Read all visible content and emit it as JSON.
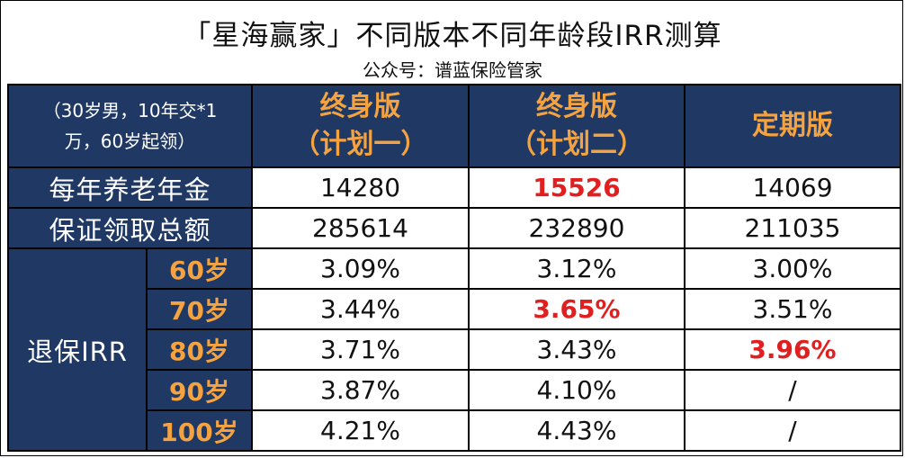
{
  "title": "「星海赢家」不同版本不同年龄段IRR测算",
  "subtitle": "公众号：谱蓝保险管家",
  "header": {
    "corner_line1": "（30岁男，10年交*1",
    "corner_line2": "万，60岁起领）",
    "col1_line1": "终身版",
    "col1_line2": "（计划一）",
    "col2_line1": "终身版",
    "col2_line2": "（计划二）",
    "col3": "定期版"
  },
  "rows": {
    "annual": {
      "label": "每年养老年金",
      "v1": "14280",
      "v2": "15526",
      "v3": "14069"
    },
    "total": {
      "label": "保证领取总额",
      "v1": "285614",
      "v2": "232890",
      "v3": "211035"
    }
  },
  "irr_label": "退保IRR",
  "irr": [
    {
      "age": "60岁",
      "v1": "3.09%",
      "v2": "3.12%",
      "v3": "3.00%"
    },
    {
      "age": "70岁",
      "v1": "3.44%",
      "v2": "3.65%",
      "v3": "3.51%"
    },
    {
      "age": "80岁",
      "v1": "3.71%",
      "v2": "3.43%",
      "v3": "3.96%"
    },
    {
      "age": "90岁",
      "v1": "3.87%",
      "v2": "4.10%",
      "v3": "/"
    },
    {
      "age": "100岁",
      "v1": "4.21%",
      "v2": "4.43%",
      "v3": "/"
    }
  ],
  "colors": {
    "navy": "#1f3864",
    "orange": "#f4a340",
    "highlight": "#e02020"
  }
}
